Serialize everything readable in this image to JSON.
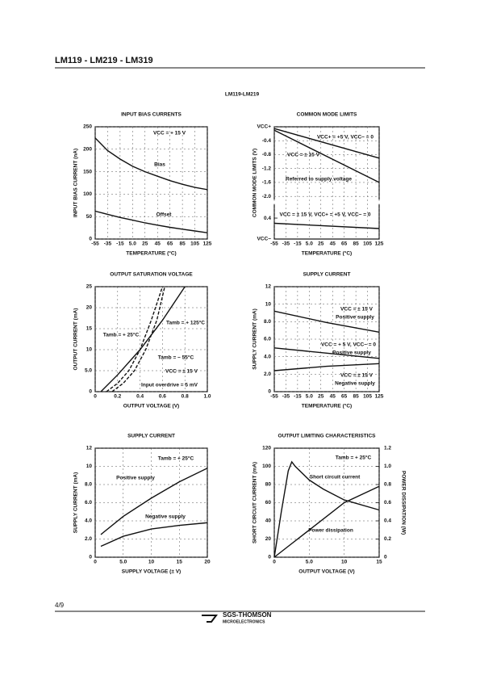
{
  "header": {
    "title": "LM119 - LM219 - LM319"
  },
  "section_title": "LM119-LM219",
  "chart_data": [
    {
      "type": "line",
      "title": "INPUT BIAS CURRENTS",
      "x_label": "TEMPERATURE (°C)",
      "y_label": "INPUT BIAS CURRENT (nA)",
      "grid": true,
      "xlim": [
        -55,
        125
      ],
      "xticks": [
        -55,
        -35,
        -15,
        {
          "value": 5,
          "label": "5.0"
        },
        25,
        45,
        65,
        85,
        105,
        125
      ],
      "ylim": [
        0,
        250
      ],
      "yticks": [
        0,
        50,
        100,
        150,
        200,
        250
      ],
      "annotations": [
        "VCC = + 15 V"
      ],
      "series": [
        {
          "name": "Bias",
          "color": "#111111",
          "style": "solid",
          "x": [
            -55,
            -35,
            -15,
            5,
            25,
            45,
            65,
            85,
            105,
            125
          ],
          "values": [
            225,
            197,
            178,
            162,
            150,
            140,
            130,
            122,
            115,
            110
          ]
        },
        {
          "name": "Offset",
          "color": "#111111",
          "style": "solid",
          "x": [
            -55,
            -35,
            -15,
            5,
            25,
            45,
            65,
            85,
            105,
            125
          ],
          "values": [
            62,
            55,
            48,
            42,
            36,
            31,
            26,
            22,
            18,
            14
          ]
        }
      ]
    },
    {
      "type": "line",
      "title": "COMMON MODE LIMITS",
      "x_label": "TEMPERATURE (°C)",
      "y_label": "COMMON MODE LIMITS (V)",
      "grid": true,
      "axis_break": true,
      "xlim": [
        -55,
        125
      ],
      "xticks": [
        -55,
        -35,
        -15,
        {
          "value": 5,
          "label": "5.0"
        },
        25,
        45,
        65,
        85,
        105,
        125
      ],
      "ylim": [
        -2.0,
        0
      ],
      "yticks": [
        {
          "value": 0,
          "label": "VCC+"
        },
        -0.4,
        -0.8,
        -1.2,
        -1.6,
        {
          "value": -2,
          "label": "-2.0"
        }
      ],
      "y2lim": [
        0,
        0.6
      ],
      "y2ticks": [
        {
          "value": 0,
          "label": "VCC−"
        },
        0.4
      ],
      "annotations": [
        "Referred to supply voltage"
      ],
      "series": [
        {
          "name": "VCC+ = +5 V, VCC− = 0",
          "color": "#111111",
          "style": "solid",
          "x": [
            -55,
            125
          ],
          "values": [
            -0.05,
            -0.9
          ]
        },
        {
          "name": "VCC = ± 15 V",
          "color": "#111111",
          "style": "solid",
          "x": [
            -55,
            125
          ],
          "values": [
            -0.1,
            -1.6
          ]
        },
        {
          "name": "VCC = ± 15 V, VCC+ = +5 V, VCC− = 0",
          "color": "#111111",
          "style": "solid",
          "axis": "y2",
          "x": [
            -55,
            125
          ],
          "values": [
            0.3,
            0.2
          ]
        }
      ]
    },
    {
      "type": "line",
      "title": "OUTPUT SATURATION VOLTAGE",
      "x_label": "OUTPUT VOLTAGE (V)",
      "y_label": "OUTPUT CURRENT (mA)",
      "grid": true,
      "xlim": [
        0,
        1
      ],
      "xticks": [
        0,
        0.2,
        0.4,
        0.6,
        0.8,
        {
          "value": 1,
          "label": "1.0"
        }
      ],
      "ylim": [
        0,
        25
      ],
      "yticks": [
        0,
        {
          "value": 5,
          "label": "5.0"
        },
        10,
        15,
        20,
        25
      ],
      "annotations": [
        "VCC = ± 15 V",
        "Input overdrive = 5 mV"
      ],
      "series": [
        {
          "name": "Tamb = + 125°C",
          "color": "#111111",
          "style": "solid",
          "x": [
            0.05,
            0.2,
            0.4,
            0.6,
            0.8
          ],
          "values": [
            0,
            4,
            10,
            17,
            25
          ]
        },
        {
          "name": "Tamb = + 25°C",
          "color": "#111111",
          "style": "dashed",
          "x": [
            0.1,
            0.2,
            0.3,
            0.4,
            0.5,
            0.6
          ],
          "values": [
            0,
            2,
            5,
            10,
            17,
            25
          ]
        },
        {
          "name": "Tamb = − 55°C",
          "color": "#111111",
          "style": "dashed",
          "x": [
            0.15,
            0.25,
            0.35,
            0.45,
            0.55,
            0.62
          ],
          "values": [
            0,
            2,
            5,
            10,
            17,
            25
          ]
        }
      ]
    },
    {
      "type": "line",
      "title": "SUPPLY CURRENT",
      "x_label": "TEMPERATURE (°C)",
      "y_label": "SUPPLY CURRENT (mA)",
      "grid": true,
      "xlim": [
        -55,
        125
      ],
      "xticks": [
        -55,
        -35,
        -15,
        {
          "value": 5,
          "label": "5.0"
        },
        25,
        45,
        65,
        85,
        105,
        125
      ],
      "ylim": [
        0,
        12
      ],
      "yticks": [
        0,
        {
          "value": 2,
          "label": "2.0"
        },
        {
          "value": 4,
          "label": "4.0"
        },
        {
          "value": 6,
          "label": "6.0"
        },
        {
          "value": 8,
          "label": "8.0"
        },
        10,
        12
      ],
      "annotations": [
        "VCC = ± 15 V",
        "VCC = + 5 V, VCC− = 0",
        "VCC = ± 15 V"
      ],
      "series": [
        {
          "name": "Positive supply",
          "color": "#111111",
          "style": "solid",
          "x": [
            -55,
            35,
            125
          ],
          "values": [
            9.2,
            7.9,
            6.8
          ]
        },
        {
          "name": "Positive supply",
          "color": "#111111",
          "style": "solid",
          "x": [
            -55,
            35,
            125
          ],
          "values": [
            5.0,
            4.4,
            3.8
          ]
        },
        {
          "name": "Negative supply",
          "color": "#111111",
          "style": "solid",
          "x": [
            -55,
            35,
            125
          ],
          "values": [
            2.4,
            2.9,
            3.2
          ]
        }
      ]
    },
    {
      "type": "line",
      "title": "SUPPLY CURRENT",
      "x_label": "SUPPLY VOLTAGE (± V)",
      "y_label": "SUPPLY CURRENT (mA)",
      "grid": true,
      "xlim": [
        0,
        20
      ],
      "xticks": [
        0,
        {
          "value": 5,
          "label": "5.0"
        },
        10,
        15,
        20
      ],
      "ylim": [
        0,
        12
      ],
      "yticks": [
        0,
        {
          "value": 2,
          "label": "2.0"
        },
        {
          "value": 4,
          "label": "4.0"
        },
        {
          "value": 6,
          "label": "6.0"
        },
        {
          "value": 8,
          "label": "8.0"
        },
        10,
        12
      ],
      "annotations": [
        "Tamb = + 25°C"
      ],
      "series": [
        {
          "name": "Positive supply",
          "color": "#111111",
          "style": "solid",
          "x": [
            1,
            5,
            10,
            15,
            20
          ],
          "values": [
            2.5,
            4.5,
            6.5,
            8.3,
            9.8
          ]
        },
        {
          "name": "Negative supply",
          "color": "#111111",
          "style": "solid",
          "x": [
            1,
            5,
            10,
            15,
            20
          ],
          "values": [
            1.2,
            2.3,
            3.1,
            3.5,
            3.8
          ]
        }
      ]
    },
    {
      "type": "line",
      "title": "OUTPUT LIMITING CHARACTERISTICS",
      "x_label": "OUTPUT VOLTAGE (V)",
      "y_label": "SHORT CIRCUIT CURRENT (mA)",
      "y2_label": "POWER DISSIPATION (W)",
      "grid": true,
      "xlim": [
        0,
        15
      ],
      "xticks": [
        0,
        {
          "value": 5,
          "label": "5.0"
        },
        10,
        15
      ],
      "ylim": [
        0,
        120
      ],
      "yticks": [
        0,
        20,
        40,
        60,
        80,
        100,
        120
      ],
      "y2lim": [
        0,
        1.2
      ],
      "y2ticks": [
        0,
        0.2,
        0.4,
        0.6,
        0.8,
        {
          "value": 1,
          "label": "1.0"
        },
        1.2
      ],
      "annotations": [
        "Tamb = + 25°C"
      ],
      "series": [
        {
          "name": "Short circuit current",
          "color": "#111111",
          "style": "solid",
          "x": [
            0,
            1,
            2,
            2.5,
            3,
            5,
            7,
            10,
            15
          ],
          "values": [
            0,
            50,
            95,
            105,
            100,
            85,
            75,
            63,
            52
          ]
        },
        {
          "name": "Power dissipation",
          "color": "#111111",
          "style": "solid",
          "axis": "y2",
          "x": [
            0,
            2,
            5,
            10,
            15
          ],
          "values": [
            0,
            0.12,
            0.3,
            0.6,
            0.78
          ]
        }
      ]
    }
  ],
  "footer": {
    "page": "4/9",
    "brand": "SGS-THOMSON",
    "sub": "MICROELECTRONICS"
  }
}
